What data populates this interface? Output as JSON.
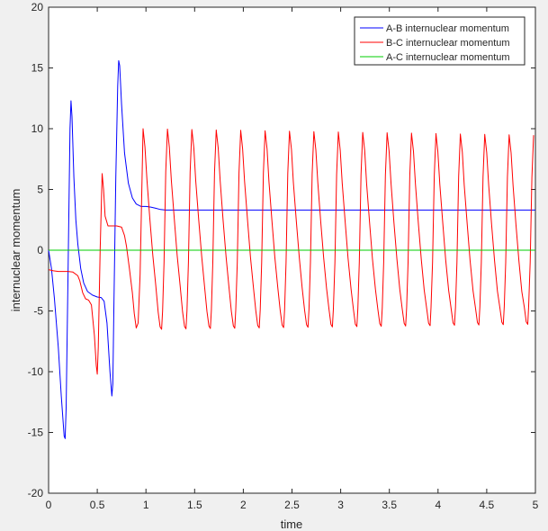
{
  "chart_data": {
    "type": "line",
    "title": "",
    "xlabel": "time",
    "ylabel": "internuclear momentum",
    "xlim": [
      0,
      5
    ],
    "ylim": [
      -20,
      20
    ],
    "x_ticks": [
      0,
      0.5,
      1,
      1.5,
      2,
      2.5,
      3,
      3.5,
      4,
      4.5,
      5
    ],
    "x_tick_labels": [
      "0",
      "0.5",
      "1",
      "1.5",
      "2",
      "2.5",
      "3",
      "3.5",
      "4",
      "4.5",
      "5"
    ],
    "y_ticks": [
      -20,
      -15,
      -10,
      -5,
      0,
      5,
      10,
      15,
      20
    ],
    "y_tick_labels": [
      "-20",
      "-15",
      "-10",
      "-5",
      "0",
      "5",
      "10",
      "15",
      "20"
    ],
    "grid": false,
    "legend_position": "top-right",
    "series": [
      {
        "name": "A-B internuclear momentum",
        "color": "#0000ff",
        "x": [
          0,
          0.03,
          0.06,
          0.1,
          0.13,
          0.16,
          0.17,
          0.18,
          0.2,
          0.22,
          0.23,
          0.24,
          0.26,
          0.28,
          0.3,
          0.33,
          0.36,
          0.4,
          0.45,
          0.5,
          0.54,
          0.57,
          0.6,
          0.63,
          0.65,
          0.66,
          0.67,
          0.69,
          0.71,
          0.72,
          0.73,
          0.75,
          0.78,
          0.82,
          0.86,
          0.9,
          0.95,
          1.0,
          1.05,
          1.1,
          1.15,
          1.2,
          1.3,
          1.5,
          2,
          3,
          4,
          5
        ],
        "y": [
          0,
          -1.5,
          -4,
          -8,
          -12,
          -15.3,
          -15.5,
          -13,
          -2,
          10,
          12.3,
          11,
          6,
          2.5,
          0.5,
          -1.5,
          -2.7,
          -3.4,
          -3.7,
          -3.85,
          -3.9,
          -4.2,
          -6,
          -10,
          -12,
          -11,
          -5,
          6,
          13.5,
          15.6,
          15.2,
          12,
          8,
          5.5,
          4.3,
          3.8,
          3.6,
          3.6,
          3.55,
          3.45,
          3.35,
          3.3,
          3.3,
          3.3,
          3.3,
          3.3,
          3.3,
          3.3
        ]
      },
      {
        "name": "B-C internuclear momentum",
        "color": "#ff0000",
        "x": [
          0,
          0.05,
          0.1,
          0.15,
          0.2,
          0.25,
          0.3,
          0.32,
          0.35,
          0.38,
          0.41,
          0.44,
          0.47,
          0.49,
          0.5,
          0.51,
          0.53,
          0.55,
          0.565,
          0.58,
          0.61,
          0.65,
          0.7,
          0.75,
          0.78,
          0.8,
          0.83,
          0.86,
          0.88,
          0.9,
          0.92,
          0.94,
          0.96,
          0.97
        ],
        "y": [
          -1.6,
          -1.7,
          -1.75,
          -1.75,
          -1.75,
          -1.8,
          -2.1,
          -2.5,
          -3.5,
          -4.0,
          -4.1,
          -4.5,
          -7,
          -9.5,
          -10.2,
          -8,
          0,
          6.3,
          5,
          2.8,
          2.0,
          2.0,
          2.0,
          1.9,
          1.2,
          0.3,
          -1.5,
          -3.5,
          -5.2,
          -6.4,
          -6.0,
          -2,
          6,
          10.0
        ],
        "oscillation": {
          "start": 0.97,
          "end": 5.0,
          "period": 0.2507,
          "peak": 10.0,
          "trough": -6.5,
          "peak_final": 9.5,
          "trough_final": -6.1
        }
      },
      {
        "name": "A-C internuclear momentum",
        "color": "#00cc00",
        "x": [
          0,
          5
        ],
        "y": [
          0,
          0
        ]
      }
    ]
  }
}
